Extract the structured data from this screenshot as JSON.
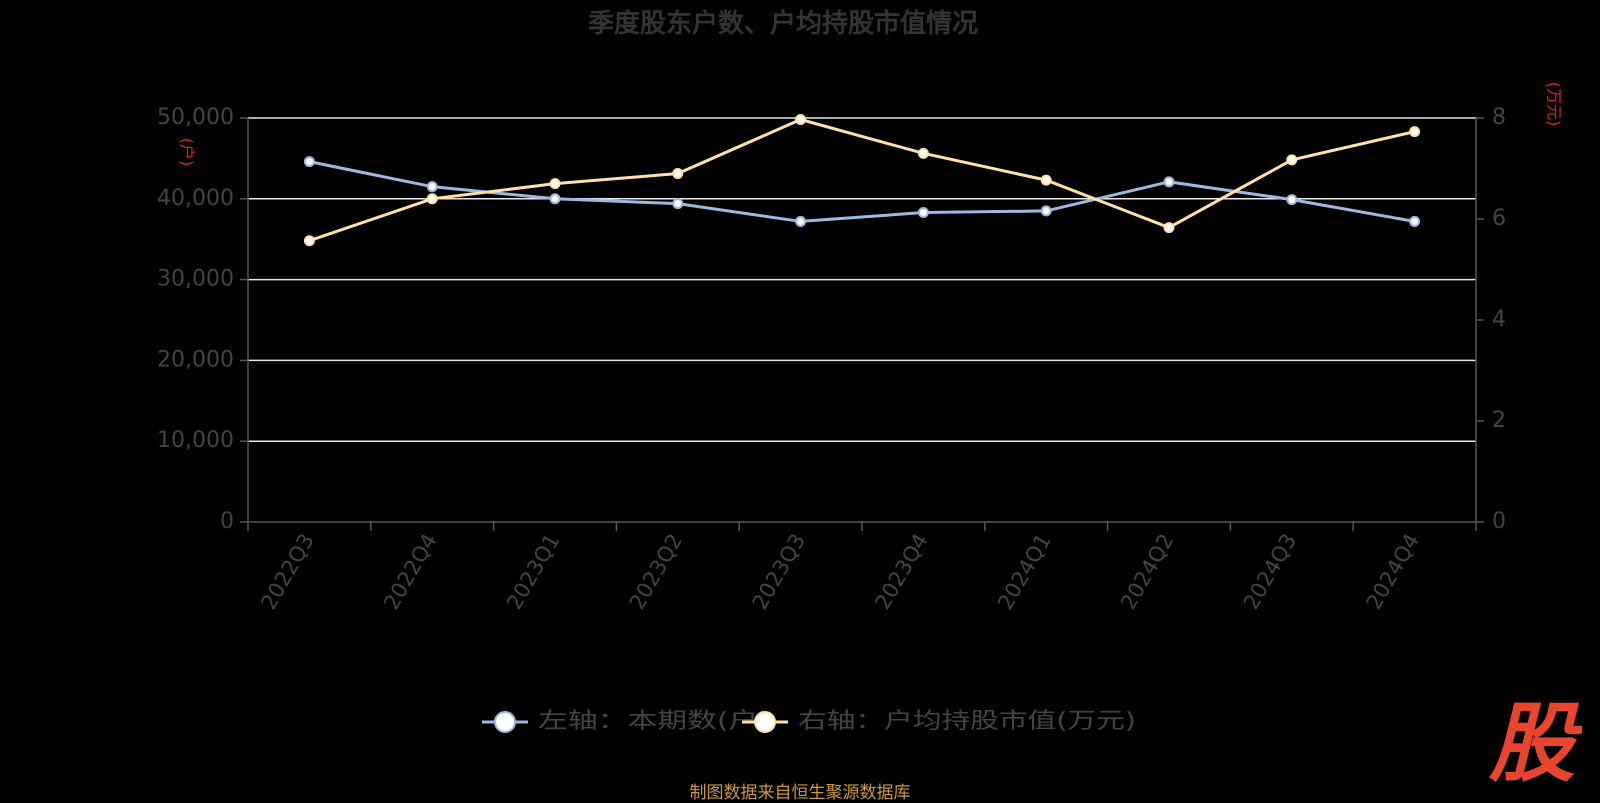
{
  "chart_data": {
    "type": "line",
    "title": "季度股东户数、户均持股市值情况",
    "categories": [
      "2022Q3",
      "2022Q4",
      "2023Q1",
      "2023Q2",
      "2023Q3",
      "2023Q4",
      "2024Q1",
      "2024Q2",
      "2024Q3",
      "2024Q4"
    ],
    "y_left": {
      "unit": "(户)",
      "ylim": [
        0,
        50000
      ],
      "ticks": [
        "0",
        "10,000",
        "20,000",
        "30,000",
        "40,000",
        "50,000"
      ],
      "tick_values": [
        0,
        10000,
        20000,
        30000,
        40000,
        50000
      ]
    },
    "y_right": {
      "unit": "(万元)",
      "ylim": [
        0,
        8
      ],
      "ticks": [
        "0",
        "2",
        "4",
        "6",
        "8"
      ],
      "tick_values": [
        0,
        2,
        4,
        6,
        8
      ]
    },
    "series": [
      {
        "name": "左轴：本期数(户)",
        "axis": "left",
        "color": "#9fb8e0",
        "values": [
          44600,
          41500,
          40000,
          39400,
          37200,
          38300,
          38500,
          42100,
          39900,
          37200
        ]
      },
      {
        "name": "右轴：户均持股市值(万元)",
        "axis": "right",
        "color": "#ffe0a8",
        "values": [
          5.57,
          6.4,
          6.7,
          6.9,
          7.97,
          7.3,
          6.77,
          5.83,
          7.17,
          7.73
        ]
      }
    ],
    "grid": true,
    "legend_position": "bottom-center"
  },
  "source_note": "制图数据来自恒生聚源数据库",
  "watermark": "股",
  "colors": {
    "grid": "#e8e8e8",
    "axis_text": "#444444",
    "unit_text": "#e02020",
    "title": "#333333"
  }
}
